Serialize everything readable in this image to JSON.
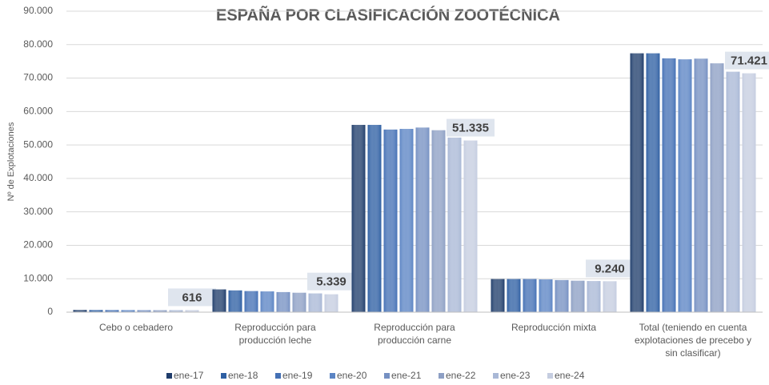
{
  "chart_data": {
    "type": "bar",
    "title": "ESPAÑA POR CLASIFICACIÓN ZOOTÉCNICA",
    "y_label": "Nº de Explotaciones",
    "categories": [
      "Cebo o cebadero",
      "Reproducción para producción leche",
      "Reproducción para producción carne",
      "Reproducción mixta",
      "Total (teniendo en cuenta explotaciones de precebo y sin clasificar)"
    ],
    "series": [
      {
        "name": "ene-17",
        "color": "#1f3d6b",
        "values": [
          650,
          6800,
          56000,
          9900,
          77400
        ]
      },
      {
        "name": "ene-18",
        "color": "#2e5fa3",
        "values": [
          640,
          6500,
          56000,
          9900,
          77400
        ]
      },
      {
        "name": "ene-19",
        "color": "#4470b5",
        "values": [
          630,
          6300,
          54600,
          9900,
          75900
        ]
      },
      {
        "name": "ene-20",
        "color": "#5b84c4",
        "values": [
          620,
          6200,
          54800,
          9800,
          75600
        ]
      },
      {
        "name": "ene-21",
        "color": "#7590c2",
        "values": [
          610,
          6000,
          55200,
          9600,
          75800
        ]
      },
      {
        "name": "ene-22",
        "color": "#8d9fc4",
        "values": [
          600,
          5800,
          54400,
          9400,
          74400
        ]
      },
      {
        "name": "ene-23",
        "color": "#a9b8d6",
        "values": [
          610,
          5600,
          52200,
          9300,
          71900
        ]
      },
      {
        "name": "ene-24",
        "color": "#c5cde0",
        "values": [
          616,
          5339,
          51335,
          9240,
          71421
        ],
        "value_labels": [
          "616",
          "5.339",
          "51.335",
          "9.240",
          "71.421"
        ]
      }
    ],
    "ylim": [
      0,
      90000
    ],
    "yticks": [
      0,
      {
        "value": 10000,
        "label": "10.000"
      },
      {
        "value": 20000,
        "label": "20.000"
      },
      {
        "value": 30000,
        "label": "30.000"
      },
      {
        "value": 40000,
        "label": "40.000"
      },
      {
        "value": 50000,
        "label": "50.000"
      },
      {
        "value": 60000,
        "label": "60.000"
      },
      {
        "value": 70000,
        "label": "70.000"
      },
      {
        "value": 80000,
        "label": "80.000"
      },
      {
        "value": 90000,
        "label": "90.000"
      }
    ],
    "grid": true,
    "legend": "bottom"
  }
}
